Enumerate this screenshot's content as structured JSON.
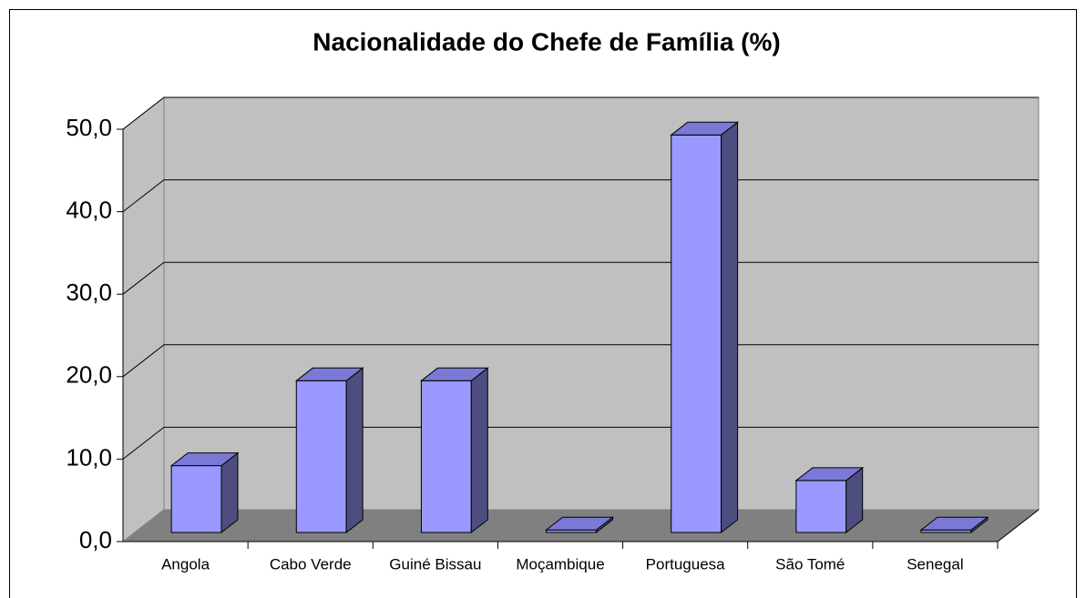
{
  "chart_data": {
    "type": "bar3d",
    "title": "Nacionalidade do Chefe de Família (%)",
    "categories": [
      "Angola",
      "Cabo Verde",
      "Guiné Bissau",
      "Moçambique",
      "Portuguesa",
      "São Tomé",
      "Senegal"
    ],
    "values": [
      8.1,
      18.4,
      18.4,
      0.3,
      48.2,
      6.3,
      0.3
    ],
    "color": "#9999ff",
    "ylim": [
      0,
      50
    ],
    "yticks": [
      {
        "value": 0,
        "label": "0,0"
      },
      {
        "value": 10,
        "label": "10,0"
      },
      {
        "value": 20,
        "label": "20,0"
      },
      {
        "value": 30,
        "label": "30,0"
      },
      {
        "value": 40,
        "label": "40,0"
      },
      {
        "value": 50,
        "label": "50,0"
      }
    ],
    "grid": true
  }
}
